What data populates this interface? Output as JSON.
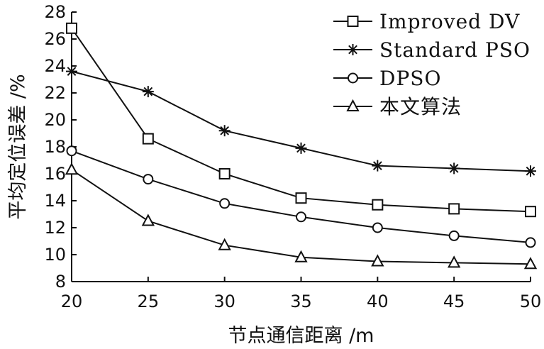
{
  "chart_data": {
    "type": "line",
    "xlabel": "节点通信距离 /m",
    "ylabel": "平均定位误差 /%",
    "x": [
      20,
      25,
      30,
      35,
      40,
      45,
      50
    ],
    "xlim": [
      20,
      50
    ],
    "ylim": [
      8,
      28
    ],
    "xticks": [
      "20",
      "25",
      "30",
      "35",
      "40",
      "45",
      "50"
    ],
    "yticks": [
      "8",
      "10",
      "12",
      "14",
      "16",
      "18",
      "20",
      "22",
      "24",
      "26",
      "28"
    ],
    "grid": false,
    "legend_position": "top-right",
    "series": [
      {
        "name": "Improved DV",
        "marker": "square",
        "values": [
          26.8,
          18.6,
          16.0,
          14.2,
          13.7,
          13.4,
          13.2
        ]
      },
      {
        "name": "Standard PSO",
        "marker": "asterisk",
        "values": [
          23.6,
          22.1,
          19.2,
          17.9,
          16.6,
          16.4,
          16.2
        ]
      },
      {
        "name": "DPSO",
        "marker": "circle",
        "values": [
          17.7,
          15.6,
          13.8,
          12.8,
          12.0,
          11.4,
          10.9
        ]
      },
      {
        "name": "本文算法",
        "marker": "triangle",
        "values": [
          16.3,
          12.5,
          10.7,
          9.8,
          9.5,
          9.4,
          9.3
        ]
      }
    ]
  }
}
